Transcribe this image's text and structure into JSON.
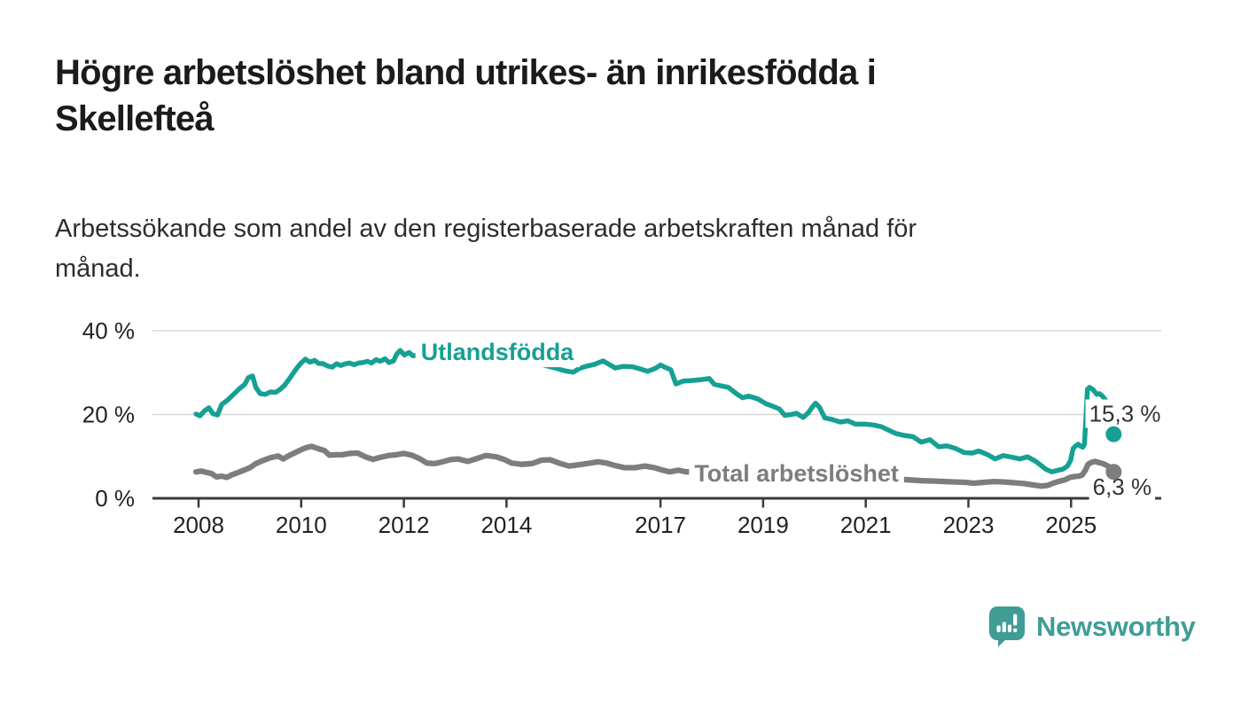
{
  "header": {
    "title_lines": [
      "Högre arbetslöshet bland utrikes- än inrikesfödda i",
      "Skellefteå"
    ],
    "subtitle_lines": [
      "Arbetssökande som andel av den registerbaserade arbetskraften månad för",
      "månad."
    ]
  },
  "branding": {
    "wordmark": "Newsworthy",
    "icon": "newsworthy-speech-bubble-bar-chart-icon",
    "color": "#3f9d96"
  },
  "colors": {
    "title_text": "#1b1b1b",
    "subtitle_text": "#2d2d2d",
    "axis": "#3a3a3a",
    "tick_text": "#222222",
    "gridline": "#d8d8d8",
    "foreign_born_line": "#16a094",
    "total_line": "#7d7d7d",
    "value_label_text": "#333333",
    "background": "#ffffff"
  },
  "chart_data": {
    "type": "line",
    "x_unit": "year (monthly observations)",
    "y_unit": "percent of registered labour force",
    "xlim": [
      2007.9,
      2026.8
    ],
    "ylim": [
      0,
      42
    ],
    "grid": "horizontal",
    "gridlines": [
      20,
      40
    ],
    "x_ticks": [
      2008,
      2010,
      2012,
      2014,
      2017,
      2019,
      2021,
      2023,
      2025
    ],
    "y_ticks": [
      {
        "value": 0,
        "label": "0 %"
      },
      {
        "value": 20,
        "label": "20 %"
      },
      {
        "value": 40,
        "label": "40 %"
      }
    ],
    "series": [
      {
        "name": "Utlandsfödda",
        "color": "#16a094",
        "end_value": 15.3,
        "end_label": {
          "text": "15,3 %",
          "x": 2025.35,
          "y": 20.2
        },
        "line_label": {
          "text": "Utlandsfödda",
          "x": 2012.33,
          "y": 34.9
        },
        "points": [
          [
            2007.95,
            20.1
          ],
          [
            2008.03,
            19.7
          ],
          [
            2008.12,
            20.9
          ],
          [
            2008.2,
            21.6
          ],
          [
            2008.28,
            20.2
          ],
          [
            2008.37,
            19.9
          ],
          [
            2008.45,
            22.4
          ],
          [
            2008.57,
            23.5
          ],
          [
            2008.68,
            24.8
          ],
          [
            2008.8,
            26.2
          ],
          [
            2008.9,
            27.2
          ],
          [
            2008.97,
            28.8
          ],
          [
            2009.05,
            29.2
          ],
          [
            2009.12,
            26.4
          ],
          [
            2009.2,
            25.0
          ],
          [
            2009.3,
            24.8
          ],
          [
            2009.4,
            25.4
          ],
          [
            2009.5,
            25.3
          ],
          [
            2009.58,
            25.9
          ],
          [
            2009.67,
            26.9
          ],
          [
            2009.75,
            28.2
          ],
          [
            2009.83,
            29.6
          ],
          [
            2009.91,
            31.0
          ],
          [
            2009.99,
            32.2
          ],
          [
            2010.08,
            33.2
          ],
          [
            2010.17,
            32.5
          ],
          [
            2010.26,
            32.9
          ],
          [
            2010.34,
            32.2
          ],
          [
            2010.43,
            32.1
          ],
          [
            2010.51,
            31.6
          ],
          [
            2010.6,
            31.3
          ],
          [
            2010.69,
            32.1
          ],
          [
            2010.77,
            31.7
          ],
          [
            2010.86,
            32.1
          ],
          [
            2010.94,
            32.3
          ],
          [
            2011.03,
            31.9
          ],
          [
            2011.12,
            32.3
          ],
          [
            2011.2,
            32.4
          ],
          [
            2011.29,
            32.7
          ],
          [
            2011.37,
            32.3
          ],
          [
            2011.46,
            33.1
          ],
          [
            2011.54,
            32.7
          ],
          [
            2011.63,
            33.3
          ],
          [
            2011.71,
            32.4
          ],
          [
            2011.8,
            32.8
          ],
          [
            2011.86,
            34.4
          ],
          [
            2011.93,
            35.3
          ],
          [
            2012.01,
            34.2
          ],
          [
            2012.1,
            34.8
          ],
          [
            2012.18,
            34.0
          ],
          [
            2012.45,
            34.5
          ],
          [
            2012.7,
            34.8
          ],
          [
            2012.95,
            34.3
          ],
          [
            2013.2,
            34.6
          ],
          [
            2013.5,
            34.0
          ],
          [
            2013.8,
            33.6
          ],
          [
            2014.1,
            33.1
          ],
          [
            2014.4,
            32.7
          ],
          [
            2014.7,
            31.9
          ],
          [
            2014.95,
            31.1
          ],
          [
            2015.15,
            30.4
          ],
          [
            2015.3,
            30.1
          ],
          [
            2015.42,
            31.0
          ],
          [
            2015.55,
            31.5
          ],
          [
            2015.72,
            32.0
          ],
          [
            2015.88,
            32.8
          ],
          [
            2016.02,
            31.8
          ],
          [
            2016.12,
            31.1
          ],
          [
            2016.28,
            31.5
          ],
          [
            2016.45,
            31.4
          ],
          [
            2016.6,
            30.9
          ],
          [
            2016.75,
            30.3
          ],
          [
            2016.9,
            31.0
          ],
          [
            2017.0,
            31.8
          ],
          [
            2017.1,
            31.2
          ],
          [
            2017.2,
            30.7
          ],
          [
            2017.3,
            27.3
          ],
          [
            2017.45,
            28.0
          ],
          [
            2017.6,
            28.1
          ],
          [
            2017.78,
            28.3
          ],
          [
            2017.95,
            28.6
          ],
          [
            2018.05,
            27.2
          ],
          [
            2018.2,
            26.8
          ],
          [
            2018.32,
            26.5
          ],
          [
            2018.5,
            24.8
          ],
          [
            2018.6,
            24.0
          ],
          [
            2018.72,
            24.4
          ],
          [
            2018.9,
            23.7
          ],
          [
            2019.05,
            22.6
          ],
          [
            2019.2,
            21.9
          ],
          [
            2019.32,
            21.3
          ],
          [
            2019.42,
            19.8
          ],
          [
            2019.55,
            20.0
          ],
          [
            2019.65,
            20.3
          ],
          [
            2019.78,
            19.3
          ],
          [
            2019.88,
            20.4
          ],
          [
            2019.96,
            21.8
          ],
          [
            2020.02,
            22.7
          ],
          [
            2020.1,
            21.7
          ],
          [
            2020.2,
            19.2
          ],
          [
            2020.35,
            18.8
          ],
          [
            2020.5,
            18.2
          ],
          [
            2020.65,
            18.5
          ],
          [
            2020.8,
            17.7
          ],
          [
            2021.0,
            17.7
          ],
          [
            2021.15,
            17.5
          ],
          [
            2021.3,
            17.1
          ],
          [
            2021.42,
            16.4
          ],
          [
            2021.58,
            15.5
          ],
          [
            2021.75,
            15.0
          ],
          [
            2021.92,
            14.7
          ],
          [
            2022.08,
            13.4
          ],
          [
            2022.25,
            14.0
          ],
          [
            2022.42,
            12.3
          ],
          [
            2022.58,
            12.5
          ],
          [
            2022.75,
            11.9
          ],
          [
            2022.92,
            10.9
          ],
          [
            2023.08,
            10.8
          ],
          [
            2023.2,
            11.3
          ],
          [
            2023.38,
            10.4
          ],
          [
            2023.52,
            9.4
          ],
          [
            2023.68,
            10.2
          ],
          [
            2023.85,
            9.8
          ],
          [
            2024.0,
            9.4
          ],
          [
            2024.15,
            9.9
          ],
          [
            2024.3,
            8.9
          ],
          [
            2024.4,
            8.0
          ],
          [
            2024.5,
            7.0
          ],
          [
            2024.62,
            6.3
          ],
          [
            2024.72,
            6.6
          ],
          [
            2024.85,
            7.0
          ],
          [
            2024.93,
            7.7
          ],
          [
            2024.99,
            9.0
          ],
          [
            2025.04,
            11.9
          ],
          [
            2025.09,
            12.5
          ],
          [
            2025.14,
            12.9
          ],
          [
            2025.19,
            12.4
          ],
          [
            2025.23,
            12.2
          ],
          [
            2025.26,
            12.9
          ],
          [
            2025.29,
            19.5
          ],
          [
            2025.32,
            26.0
          ],
          [
            2025.36,
            26.5
          ],
          [
            2025.43,
            25.9
          ],
          [
            2025.5,
            24.8
          ],
          [
            2025.55,
            25.0
          ],
          [
            2025.61,
            24.4
          ],
          [
            2025.68,
            23.3
          ],
          [
            2025.74,
            21.0
          ],
          [
            2025.79,
            17.8
          ],
          [
            2025.83,
            15.3
          ]
        ]
      },
      {
        "name": "Total arbetslöshet",
        "color": "#7d7d7d",
        "end_value": 6.3,
        "end_label": {
          "text": "6,3 %",
          "x": 2025.42,
          "y": 2.7
        },
        "line_label": {
          "text": "Total arbetslöshet",
          "x": 2017.66,
          "y": 5.9
        },
        "points": [
          [
            2007.95,
            6.3
          ],
          [
            2008.05,
            6.5
          ],
          [
            2008.15,
            6.2
          ],
          [
            2008.25,
            5.9
          ],
          [
            2008.35,
            5.1
          ],
          [
            2008.45,
            5.3
          ],
          [
            2008.55,
            5.0
          ],
          [
            2008.65,
            5.6
          ],
          [
            2008.78,
            6.2
          ],
          [
            2008.9,
            6.8
          ],
          [
            2009.0,
            7.3
          ],
          [
            2009.12,
            8.3
          ],
          [
            2009.25,
            9.0
          ],
          [
            2009.4,
            9.7
          ],
          [
            2009.55,
            10.1
          ],
          [
            2009.65,
            9.4
          ],
          [
            2009.78,
            10.3
          ],
          [
            2009.9,
            11.0
          ],
          [
            2010.0,
            11.6
          ],
          [
            2010.1,
            12.1
          ],
          [
            2010.2,
            12.4
          ],
          [
            2010.32,
            11.9
          ],
          [
            2010.45,
            11.4
          ],
          [
            2010.55,
            10.3
          ],
          [
            2010.68,
            10.4
          ],
          [
            2010.8,
            10.4
          ],
          [
            2010.95,
            10.7
          ],
          [
            2011.1,
            10.8
          ],
          [
            2011.25,
            9.9
          ],
          [
            2011.4,
            9.3
          ],
          [
            2011.55,
            9.8
          ],
          [
            2011.7,
            10.2
          ],
          [
            2011.85,
            10.4
          ],
          [
            2012.0,
            10.7
          ],
          [
            2012.15,
            10.3
          ],
          [
            2012.3,
            9.5
          ],
          [
            2012.45,
            8.4
          ],
          [
            2012.6,
            8.3
          ],
          [
            2012.75,
            8.7
          ],
          [
            2012.9,
            9.2
          ],
          [
            2013.05,
            9.4
          ],
          [
            2013.25,
            8.8
          ],
          [
            2013.45,
            9.6
          ],
          [
            2013.6,
            10.2
          ],
          [
            2013.8,
            9.9
          ],
          [
            2013.95,
            9.3
          ],
          [
            2014.1,
            8.4
          ],
          [
            2014.3,
            8.1
          ],
          [
            2014.5,
            8.3
          ],
          [
            2014.68,
            9.1
          ],
          [
            2014.85,
            9.2
          ],
          [
            2015.05,
            8.3
          ],
          [
            2015.22,
            7.7
          ],
          [
            2015.4,
            8.0
          ],
          [
            2015.58,
            8.3
          ],
          [
            2015.78,
            8.7
          ],
          [
            2015.95,
            8.4
          ],
          [
            2016.12,
            7.8
          ],
          [
            2016.3,
            7.3
          ],
          [
            2016.5,
            7.3
          ],
          [
            2016.7,
            7.7
          ],
          [
            2016.88,
            7.3
          ],
          [
            2017.02,
            6.8
          ],
          [
            2017.18,
            6.3
          ],
          [
            2017.35,
            6.7
          ],
          [
            2017.5,
            6.3
          ],
          [
            2017.8,
            6.3
          ],
          [
            2018.2,
            6.0
          ],
          [
            2018.6,
            5.8
          ],
          [
            2019.0,
            5.6
          ],
          [
            2019.5,
            5.3
          ],
          [
            2020.0,
            5.2
          ],
          [
            2020.4,
            5.5
          ],
          [
            2020.8,
            5.2
          ],
          [
            2021.2,
            4.8
          ],
          [
            2021.7,
            4.5
          ],
          [
            2022.1,
            4.2
          ],
          [
            2022.35,
            4.1
          ],
          [
            2022.55,
            4.0
          ],
          [
            2022.75,
            3.9
          ],
          [
            2022.95,
            3.8
          ],
          [
            2023.1,
            3.6
          ],
          [
            2023.3,
            3.8
          ],
          [
            2023.5,
            4.0
          ],
          [
            2023.7,
            3.9
          ],
          [
            2023.9,
            3.7
          ],
          [
            2024.1,
            3.5
          ],
          [
            2024.25,
            3.2
          ],
          [
            2024.42,
            2.9
          ],
          [
            2024.55,
            3.1
          ],
          [
            2024.65,
            3.6
          ],
          [
            2024.75,
            4.0
          ],
          [
            2024.88,
            4.4
          ],
          [
            2024.98,
            5.0
          ],
          [
            2025.08,
            5.2
          ],
          [
            2025.16,
            5.3
          ],
          [
            2025.22,
            5.6
          ],
          [
            2025.28,
            6.7
          ],
          [
            2025.33,
            8.1
          ],
          [
            2025.4,
            8.6
          ],
          [
            2025.47,
            8.8
          ],
          [
            2025.55,
            8.5
          ],
          [
            2025.62,
            8.3
          ],
          [
            2025.7,
            7.8
          ],
          [
            2025.76,
            7.4
          ],
          [
            2025.83,
            6.3
          ]
        ]
      }
    ]
  }
}
